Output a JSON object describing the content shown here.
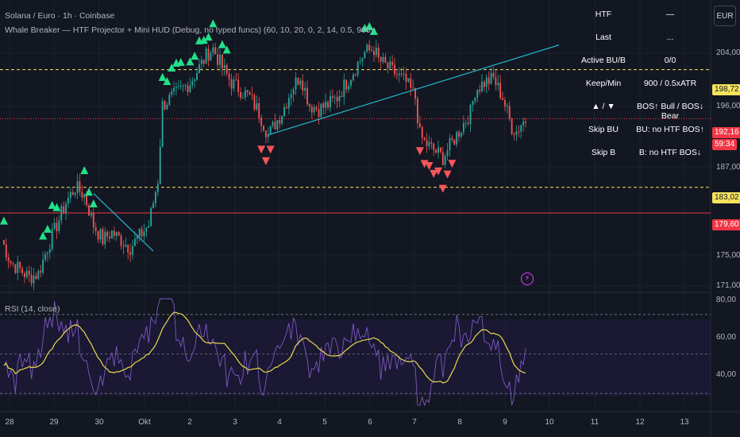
{
  "header": {
    "symbol_line": "Solana / Euro · 1h · Coinbase",
    "indicator_line": "Whale Breaker — HTF Projector + Mini HUD (Debug, no typed funcs) (60, 10, 20, 0, 2, 14, 0.5, 900)"
  },
  "rsi_panel": {
    "label": "RSI (14, close)"
  },
  "currency_button": "EUR",
  "hud": [
    {
      "key": "HTF",
      "value": "—"
    },
    {
      "key": "Last",
      "value": "..."
    },
    {
      "key": "Active BU/B",
      "value": "0/0"
    },
    {
      "key": "Keep/Min",
      "value": "900 / 0.5xATR"
    },
    {
      "key": "▲ / ▼",
      "value": "BOS↑ Bull / BOS↓ Bear"
    },
    {
      "key": "Skip BU",
      "value": "BU: no HTF BOS↑"
    },
    {
      "key": "Skip B",
      "value": "B: no HTF BOS↓"
    }
  ],
  "price_axis": {
    "ticks": [
      "204,00",
      "196,00",
      "187,00",
      "175,00",
      "171,00"
    ],
    "labels": [
      {
        "text": "198,72",
        "bg": "#f7e35c",
        "fg": "#131722"
      },
      {
        "text": "192,16",
        "bg": "#f23645",
        "fg": "#ffffff"
      },
      {
        "text": "59:34",
        "bg": "#f23645",
        "fg": "#ffffff"
      },
      {
        "text": "183,02",
        "bg": "#f7e35c",
        "fg": "#131722"
      },
      {
        "text": "179,60",
        "bg": "#f23645",
        "fg": "#ffffff"
      }
    ]
  },
  "rsi_axis": {
    "ticks": [
      "80,00",
      "60,00",
      "40,00"
    ]
  },
  "time_axis": [
    "28",
    "29",
    "30",
    "Okt",
    "2",
    "3",
    "4",
    "5",
    "6",
    "7",
    "8",
    "9",
    "10",
    "11",
    "12",
    "13"
  ],
  "colors": {
    "bull": "#26a69a",
    "bear": "#ef5350",
    "rsi": "#7e57c2",
    "rsi_ma": "#e9d84c",
    "trendline": "#22b8cf",
    "htf_level": "#f7e35c",
    "support": "#f23645",
    "bull_marker": "#22e08a",
    "bear_marker": "#f6565a"
  },
  "chart_data": {
    "type": "candlestick",
    "price_range": [
      169,
      208
    ],
    "levels": [
      198.72,
      183.02,
      179.6,
      192.16
    ],
    "close_path": [
      [
        0,
        176
      ],
      [
        4,
        173
      ],
      [
        8,
        172
      ],
      [
        12,
        171
      ],
      [
        16,
        171.5
      ],
      [
        20,
        175
      ],
      [
        24,
        178
      ],
      [
        28,
        181
      ],
      [
        32,
        183
      ],
      [
        36,
        182
      ],
      [
        40,
        178
      ],
      [
        44,
        176
      ],
      [
        48,
        177
      ],
      [
        52,
        176
      ],
      [
        56,
        175
      ],
      [
        60,
        176.5
      ],
      [
        64,
        178
      ],
      [
        68,
        184
      ],
      [
        70,
        194
      ],
      [
        74,
        195
      ],
      [
        78,
        196
      ],
      [
        82,
        197
      ],
      [
        86,
        199
      ],
      [
        90,
        201
      ],
      [
        92,
        201.5
      ],
      [
        96,
        199
      ],
      [
        100,
        197
      ],
      [
        104,
        196
      ],
      [
        108,
        195
      ],
      [
        112,
        193
      ],
      [
        116,
        190
      ],
      [
        118,
        191
      ],
      [
        122,
        193
      ],
      [
        126,
        196
      ],
      [
        130,
        198
      ],
      [
        134,
        194
      ],
      [
        138,
        193.5
      ],
      [
        142,
        194
      ],
      [
        146,
        195
      ],
      [
        150,
        197
      ],
      [
        154,
        199
      ],
      [
        158,
        201
      ],
      [
        162,
        201.5
      ],
      [
        164,
        200
      ],
      [
        168,
        199
      ],
      [
        172,
        198
      ],
      [
        176,
        197
      ],
      [
        180,
        195
      ],
      [
        182,
        190
      ],
      [
        184,
        189
      ],
      [
        188,
        188
      ],
      [
        192,
        187
      ],
      [
        196,
        189
      ],
      [
        200,
        191
      ],
      [
        204,
        193
      ],
      [
        206,
        196
      ],
      [
        210,
        197
      ],
      [
        214,
        197.5
      ],
      [
        218,
        195
      ],
      [
        222,
        191
      ],
      [
        224,
        190.5
      ],
      [
        226,
        191.5
      ],
      [
        228,
        192
      ]
    ],
    "candle_count": 228,
    "rsi_range": [
      20,
      80
    ],
    "rsi_levels": [
      70,
      50,
      30
    ]
  }
}
